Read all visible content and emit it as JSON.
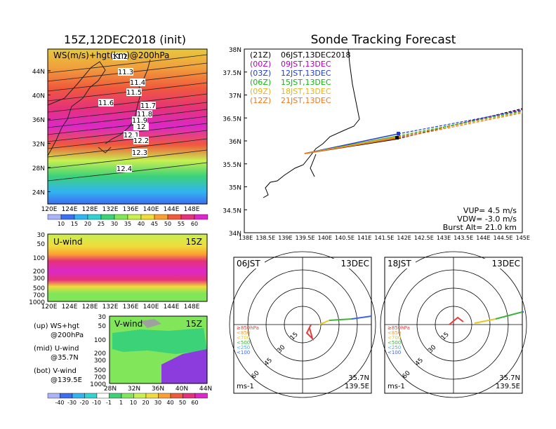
{
  "colors": {
    "ws_levels": [
      "#aab4fa",
      "#3c6ef0",
      "#32b4f0",
      "#32d2d2",
      "#3cd278",
      "#82e65a",
      "#c8f050",
      "#f0dc3c",
      "#faa032",
      "#f05a3c",
      "#e63278",
      "#dc28c8"
    ],
    "uwind_band": "#e8336e",
    "uwind_core": "#dc28c8",
    "uwind_bg": "#82e65a",
    "uwind_top": "#c8f050",
    "vwind_bg": "#82e65a",
    "vwind_pos": "#3cd278",
    "vwind_neg": "#8c3cdc",
    "vwind_gray": "#a0a0a0",
    "track_21z": "#000000",
    "track_00z": "#b400b4",
    "track_03z": "#1e3cdc",
    "track_06z": "#14b414",
    "track_09z": "#e6b41e",
    "track_12z": "#f0781e"
  },
  "left": {
    "title": "15Z,12DEC2018 (init)",
    "map_label": "WS(m/s)+hgt(km)@200hPa",
    "contour_labels": [
      "11.2",
      "11.3",
      "11.4",
      "11.5",
      "11.6",
      "11.7",
      "11.8",
      "11.9",
      "12",
      "12.1",
      "12.2",
      "12.3",
      "12.4"
    ],
    "lat_ticks": [
      "44N",
      "40N",
      "36N",
      "32N",
      "28N",
      "24N"
    ],
    "lon_ticks": [
      "120E",
      "124E",
      "128E",
      "132E",
      "136E",
      "140E",
      "144E",
      "148E"
    ],
    "colorbar_ticks": [
      "10",
      "15",
      "20",
      "25",
      "30",
      "35",
      "40",
      "45",
      "50",
      "55",
      "60"
    ],
    "uwind_label": "U-wind",
    "uwind_time": "15Z",
    "uwind_pressure_ticks": [
      "30",
      "50",
      "100",
      "200",
      "300",
      "500",
      "700",
      "1000"
    ],
    "uwind_lon_ticks": [
      "120E",
      "124E",
      "128E",
      "132E",
      "136E",
      "140E",
      "144E",
      "148E"
    ],
    "vwind_label": "V-wind",
    "vwind_time": "15Z",
    "vwind_pressure_ticks": [
      "30",
      "50",
      "100",
      "200",
      "300",
      "500",
      "700",
      "1000"
    ],
    "vwind_lat_ticks": [
      "28N",
      "32N",
      "36N",
      "40N",
      "44N"
    ],
    "legend": [
      {
        "row": "(up) WS+hgt",
        "sub": "@200hPa"
      },
      {
        "row": "(mid) U-wind",
        "sub": "@35.7N"
      },
      {
        "row": "(bot) V-wind",
        "sub": "@139.5E"
      }
    ],
    "bottom_colorbar_ticks": [
      "-40",
      "-30",
      "-20",
      "-10",
      "-1",
      "1",
      "10",
      "20",
      "30",
      "40",
      "50",
      "60"
    ]
  },
  "right": {
    "title": "Sonde Tracking Forecast",
    "lat_ticks": [
      "38N",
      "37.5N",
      "37N",
      "36.5N",
      "36N",
      "35.5N",
      "35N",
      "34.5N",
      "34N"
    ],
    "lon_ticks": [
      "138E",
      "138.5E",
      "139E",
      "139.5E",
      "140E",
      "140.5E",
      "141E",
      "141.5E",
      "142E",
      "142.5E",
      "143E",
      "143.5E",
      "144E",
      "144.5E",
      "145E"
    ],
    "launches": [
      {
        "code": "(21Z)",
        "text": "06JST,13DEC2018",
        "color": "#000000"
      },
      {
        "code": "(00Z)",
        "text": "09JST,13DEC",
        "color": "#b400b4"
      },
      {
        "code": "(03Z)",
        "text": "12JST,13DEC",
        "color": "#1e3cdc"
      },
      {
        "code": "(06Z)",
        "text": "15JST,13DEC",
        "color": "#14b414"
      },
      {
        "code": "(09Z)",
        "text": "18JST,13DEC",
        "color": "#e6b41e"
      },
      {
        "code": "(12Z)",
        "text": "21JST,13DEC",
        "color": "#f0781e"
      }
    ],
    "vup": "VUP= 4.5 m/s",
    "vdw": "VDW= -3.0 m/s",
    "burst": "Burst Alt= 21.0 km",
    "hodo1": {
      "time": "06JST",
      "date": "13DEC",
      "lat": "35.7N",
      "lon": "139.5E",
      "unit": "ms-1"
    },
    "hodo2": {
      "time": "18JST",
      "date": "13DEC",
      "lat": "35.7N",
      "lon": "139.5E",
      "unit": "ms-1"
    },
    "ring_labels": [
      "15",
      "30",
      "45",
      "60"
    ],
    "level_legend": [
      {
        "text": "≥850hPa",
        "color": "#e63c3c"
      },
      {
        "text": "<850",
        "color": "#f0a03c"
      },
      {
        "text": "<700",
        "color": "#e6c81e"
      },
      {
        "text": "<500",
        "color": "#3cb43c"
      },
      {
        "text": "<250",
        "color": "#32b4f0"
      },
      {
        "text": "<100",
        "color": "#3c64f0"
      }
    ]
  }
}
